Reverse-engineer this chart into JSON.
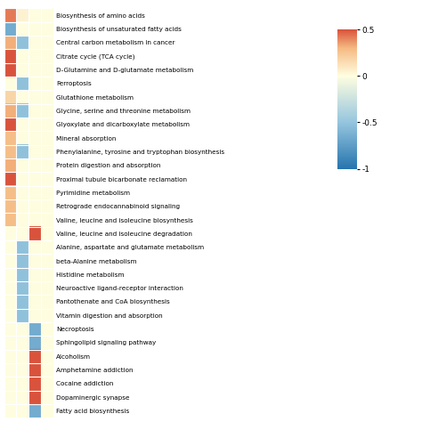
{
  "pathways": [
    "Biosynthesis of amino acids",
    "Biosynthesis of unsaturated fatty acids",
    "Central carbon metabolism in cancer",
    "Citrate cycle (TCA cycle)",
    "D-Glutamine and D-glutamate metabolism",
    "Ferroptosis",
    "Glutathione metabolism",
    "Glycine, serine and threonine metabolism",
    "Glyoxylate and dicarboxylate metabolism",
    "Mineral absorption",
    "Phenylalanine, tyrosine and tryptophan biosynthesis",
    "Protein digestion and absorption",
    "Proximal tubule bicarbonate reclamation",
    "Pyrimidine metabolism",
    "Retrograde endocannabinoid signaling",
    "Valine, leucine and isoleucine biosynthesis",
    "Valine, leucine and isoleucine degradation",
    "Alanine, aspartate and glutamate metabolism",
    "beta-Alanine metabolism",
    "Histidine metabolism",
    "Neuroactive ligand-receptor interaction",
    "Pantothenate and CoA biosynthesis",
    "Vitamin digestion and absorption",
    "Necroptosis",
    "Sphingolipid signaling pathway",
    "Alcoholism",
    "Amphetamine addiction",
    "Cocaine addiction",
    "Dopaminergic synapse",
    "Fatty acid biosynthesis"
  ],
  "data": [
    [
      0.42,
      0.05,
      0.0,
      0.0
    ],
    [
      -0.65,
      0.0,
      0.0,
      0.0
    ],
    [
      0.32,
      -0.52,
      0.0,
      0.0
    ],
    [
      0.88,
      0.0,
      0.0,
      0.0
    ],
    [
      0.88,
      0.0,
      0.0,
      0.0
    ],
    [
      0.0,
      -0.52,
      0.0,
      0.0
    ],
    [
      0.18,
      0.0,
      0.0,
      0.0
    ],
    [
      0.32,
      -0.52,
      0.0,
      0.0
    ],
    [
      0.88,
      0.0,
      0.0,
      0.0
    ],
    [
      0.28,
      0.0,
      0.0,
      0.0
    ],
    [
      0.28,
      -0.52,
      0.0,
      0.0
    ],
    [
      0.32,
      0.0,
      0.0,
      0.0
    ],
    [
      0.88,
      0.0,
      0.0,
      0.0
    ],
    [
      0.28,
      0.0,
      0.0,
      0.0
    ],
    [
      0.28,
      0.0,
      0.0,
      0.0
    ],
    [
      0.28,
      0.0,
      0.0,
      0.0
    ],
    [
      0.0,
      0.0,
      0.88,
      0.0
    ],
    [
      0.0,
      -0.52,
      0.0,
      0.0
    ],
    [
      0.0,
      -0.52,
      0.0,
      0.0
    ],
    [
      0.0,
      -0.52,
      0.0,
      0.0
    ],
    [
      0.0,
      -0.52,
      0.0,
      0.0
    ],
    [
      0.0,
      -0.52,
      0.0,
      0.0
    ],
    [
      0.0,
      -0.52,
      0.0,
      0.0
    ],
    [
      0.0,
      0.0,
      -0.65,
      0.0
    ],
    [
      0.0,
      0.0,
      -0.65,
      0.0
    ],
    [
      0.0,
      0.0,
      0.88,
      0.0
    ],
    [
      0.0,
      0.0,
      0.88,
      0.0
    ],
    [
      0.0,
      0.0,
      0.88,
      0.0
    ],
    [
      0.0,
      0.0,
      0.88,
      0.0
    ],
    [
      0.0,
      0.0,
      -0.65,
      0.0
    ]
  ],
  "vmin": -1.0,
  "vmax": 0.5,
  "cbar_ticks": [
    0.5,
    0.0,
    -0.5,
    -1.0
  ],
  "cbar_labels": [
    "0.5",
    "0",
    "-0.5",
    "-1"
  ],
  "n_cols": 4,
  "background_color": "#FFFFFF",
  "colormap_nodes": [
    [
      -1.0,
      "#2775AE"
    ],
    [
      -0.5,
      "#95C5DE"
    ],
    [
      0.0,
      "#FFFEE0"
    ],
    [
      0.3,
      "#F5BA82"
    ],
    [
      0.5,
      "#D9533C"
    ]
  ]
}
